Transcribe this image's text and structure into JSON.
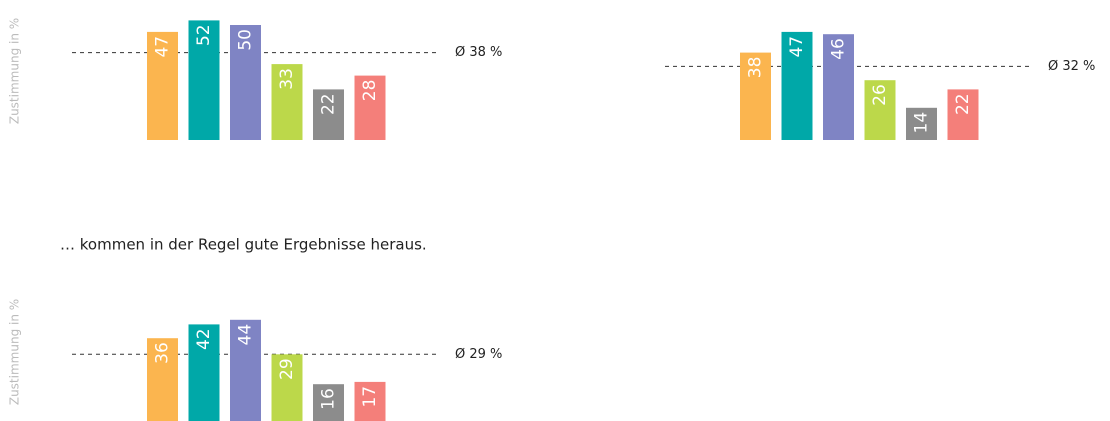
{
  "chart_data": [
    {
      "type": "bar",
      "y_label": "Zustimmung in %",
      "values": [
        47,
        52,
        50,
        33,
        22,
        28
      ],
      "colors": [
        "#fbb54f",
        "#00a8a8",
        "#7f84c4",
        "#bcd84a",
        "#8c8c8c",
        "#f47f7a"
      ],
      "ylim": [
        0,
        60
      ],
      "average": {
        "value": 38,
        "label": "Ø 38 %"
      }
    },
    {
      "type": "bar",
      "values": [
        38,
        47,
        46,
        26,
        14,
        22
      ],
      "colors": [
        "#fbb54f",
        "#00a8a8",
        "#7f84c4",
        "#bcd84a",
        "#8c8c8c",
        "#f47f7a"
      ],
      "ylim": [
        0,
        60
      ],
      "average": {
        "value": 32,
        "label": "Ø 32 %"
      }
    },
    {
      "type": "bar",
      "title": "… kommen in der Regel gute Ergebnisse heraus.",
      "y_label": "Zustimmung in %",
      "values": [
        36,
        42,
        44,
        29,
        16,
        17
      ],
      "colors": [
        "#fbb54f",
        "#00a8a8",
        "#7f84c4",
        "#bcd84a",
        "#8c8c8c",
        "#f47f7a"
      ],
      "ylim": [
        0,
        60
      ],
      "average": {
        "value": 29,
        "label": "Ø 29 %"
      }
    }
  ]
}
